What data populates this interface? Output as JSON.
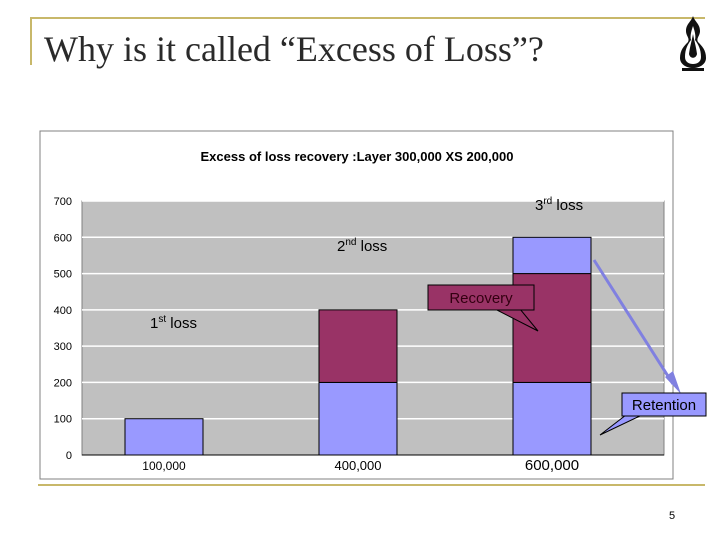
{
  "slide": {
    "title": "Why is it called “Excess of Loss”?",
    "page_number": "5"
  },
  "chart_data": {
    "type": "bar",
    "title": "Excess of loss recovery :Layer 300,000 XS 200,000",
    "categories": [
      "100,000",
      "400,000",
      "600,000"
    ],
    "ylim": [
      0,
      700
    ],
    "yticks": [
      0,
      100,
      200,
      300,
      400,
      500,
      600,
      700
    ],
    "grid": true,
    "stacked": true,
    "series": [
      {
        "values": [
          100,
          200,
          200
        ],
        "color": "#9999ff"
      },
      {
        "values": [
          0,
          200,
          300
        ],
        "color": "#993366"
      },
      {
        "values": [
          0,
          0,
          100
        ],
        "color": "#9999ff"
      }
    ],
    "annotations": {
      "first_loss": {
        "base": "1",
        "sup": "st",
        "rest": " loss"
      },
      "second_loss": {
        "base": "2",
        "sup": "nd",
        "rest": " loss"
      },
      "third_loss": {
        "base": "3",
        "sup": "rd",
        "rest": " loss"
      },
      "recovery": "Recovery",
      "retention": "Retention"
    },
    "colors": {
      "plot_bg": "#c0c0c0",
      "retention": "#9999ff",
      "recovery": "#993366",
      "arrow": "#8080e0"
    }
  }
}
